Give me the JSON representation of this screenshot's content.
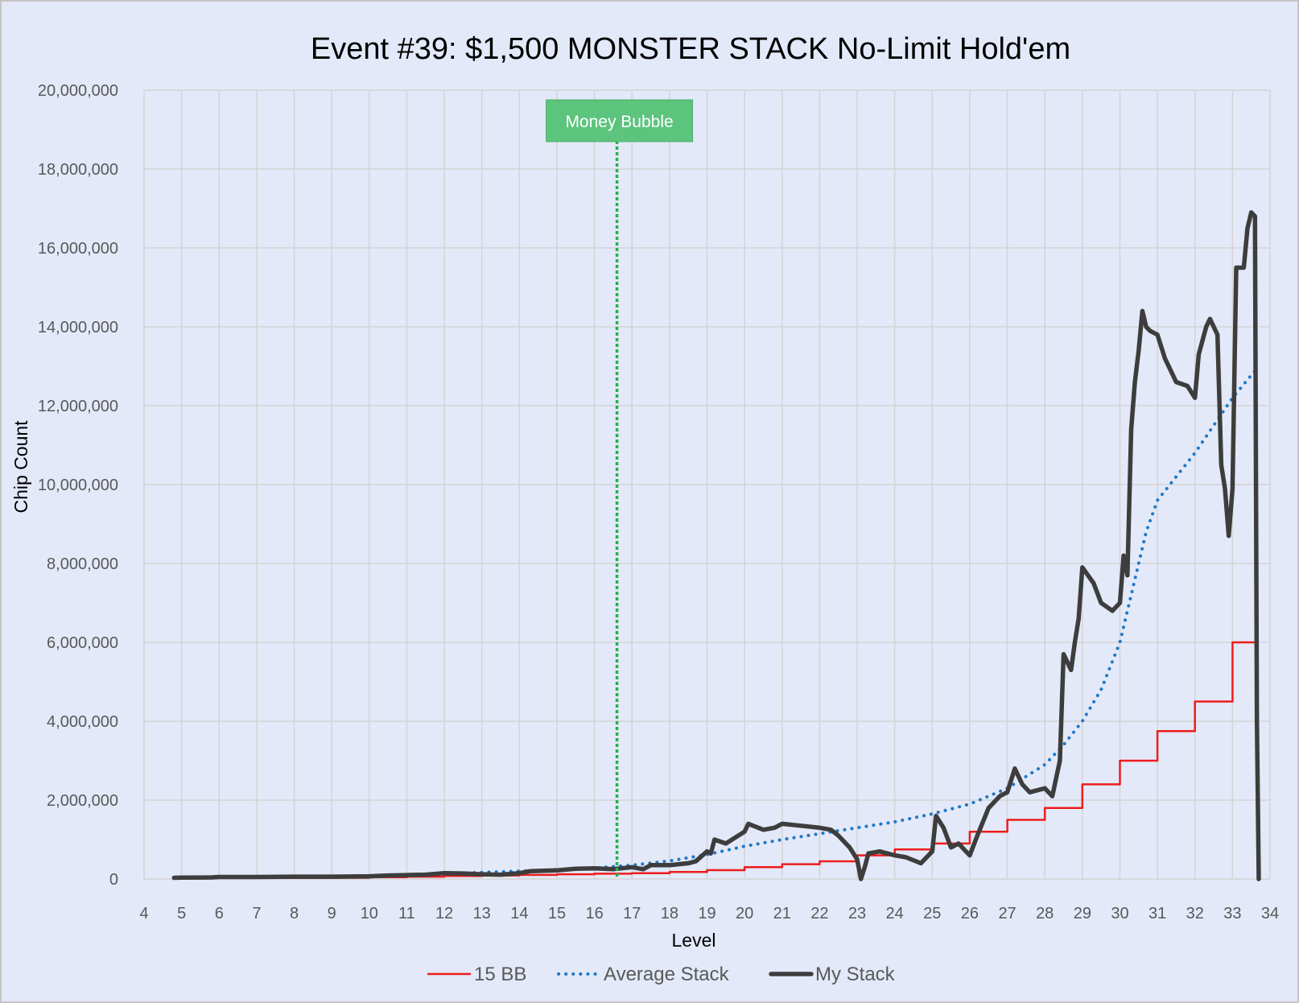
{
  "chart_data": {
    "type": "line",
    "title": "Event #39: $1,500 MONSTER STACK No-Limit Hold'em",
    "xlabel": "Level",
    "ylabel": "Chip Count",
    "xlim": [
      4,
      34
    ],
    "ylim": [
      0,
      20000000
    ],
    "x_ticks": [
      "4",
      "5",
      "6",
      "7",
      "8",
      "9",
      "10",
      "11",
      "12",
      "13",
      "14",
      "15",
      "16",
      "17",
      "18",
      "19",
      "20",
      "21",
      "22",
      "23",
      "24",
      "25",
      "26",
      "27",
      "28",
      "29",
      "30",
      "31",
      "32",
      "33",
      "34"
    ],
    "y_ticks": [
      "0",
      "2,000,000",
      "4,000,000",
      "6,000,000",
      "8,000,000",
      "10,000,000",
      "12,000,000",
      "14,000,000",
      "16,000,000",
      "18,000,000",
      "20,000,000"
    ],
    "grid": true,
    "legend_position": "bottom",
    "colors": {
      "background": "#e3e9f8",
      "grid": "#d4d4d4",
      "fifteen_bb": "#ee1c1c",
      "average_stack": "#1f78c8",
      "my_stack": "#3d3d3d",
      "money_bubble": "#22b14c",
      "money_bubble_box": "#5cc47d"
    },
    "annotation": {
      "label": "Money Bubble",
      "x": 16.6
    },
    "series": [
      {
        "name": "15 BB",
        "style": "step",
        "points": [
          [
            4.8,
            30000
          ],
          [
            10,
            30000
          ],
          [
            10,
            45000
          ],
          [
            11,
            45000
          ],
          [
            11,
            60000
          ],
          [
            12,
            60000
          ],
          [
            12,
            75000
          ],
          [
            13,
            75000
          ],
          [
            13,
            90000
          ],
          [
            14,
            90000
          ],
          [
            14,
            105000
          ],
          [
            15,
            105000
          ],
          [
            15,
            120000
          ],
          [
            16,
            120000
          ],
          [
            16,
            135000
          ],
          [
            17,
            135000
          ],
          [
            17,
            150000
          ],
          [
            18,
            150000
          ],
          [
            18,
            180000
          ],
          [
            19,
            180000
          ],
          [
            19,
            225000
          ],
          [
            20,
            225000
          ],
          [
            20,
            300000
          ],
          [
            21,
            300000
          ],
          [
            21,
            375000
          ],
          [
            22,
            375000
          ],
          [
            22,
            450000
          ],
          [
            23,
            450000
          ],
          [
            23,
            600000
          ],
          [
            24,
            600000
          ],
          [
            24,
            750000
          ],
          [
            25,
            750000
          ],
          [
            25,
            900000
          ],
          [
            26,
            900000
          ],
          [
            26,
            1200000
          ],
          [
            27,
            1200000
          ],
          [
            27,
            1500000
          ],
          [
            28,
            1500000
          ],
          [
            28,
            1800000
          ],
          [
            29,
            1800000
          ],
          [
            29,
            2400000
          ],
          [
            30,
            2400000
          ],
          [
            30,
            3000000
          ],
          [
            31,
            3000000
          ],
          [
            31,
            3750000
          ],
          [
            32,
            3750000
          ],
          [
            32,
            4500000
          ],
          [
            33,
            4500000
          ],
          [
            33,
            6000000
          ],
          [
            33.7,
            6000000
          ]
        ]
      },
      {
        "name": "Average Stack",
        "style": "dotted",
        "points": [
          [
            4.8,
            30000
          ],
          [
            6,
            35000
          ],
          [
            8,
            45000
          ],
          [
            10,
            70000
          ],
          [
            12,
            130000
          ],
          [
            13,
            170000
          ],
          [
            14,
            200000
          ],
          [
            15,
            240000
          ],
          [
            16,
            280000
          ],
          [
            17,
            350000
          ],
          [
            18,
            460000
          ],
          [
            19,
            620000
          ],
          [
            20,
            830000
          ],
          [
            21,
            1000000
          ],
          [
            22,
            1150000
          ],
          [
            23,
            1300000
          ],
          [
            24,
            1450000
          ],
          [
            25,
            1650000
          ],
          [
            26,
            1900000
          ],
          [
            27,
            2300000
          ],
          [
            28,
            2900000
          ],
          [
            28.5,
            3400000
          ],
          [
            29,
            4000000
          ],
          [
            29.5,
            4800000
          ],
          [
            30,
            6000000
          ],
          [
            30.3,
            7200000
          ],
          [
            30.7,
            8800000
          ],
          [
            31,
            9600000
          ],
          [
            31.5,
            10200000
          ],
          [
            32,
            10800000
          ],
          [
            32.5,
            11500000
          ],
          [
            33,
            12200000
          ],
          [
            33.7,
            13000000
          ]
        ]
      },
      {
        "name": "My Stack",
        "style": "solid",
        "points": [
          [
            4.8,
            30000
          ],
          [
            5,
            35000
          ],
          [
            5.8,
            40000
          ],
          [
            6,
            50000
          ],
          [
            7,
            50000
          ],
          [
            8,
            60000
          ],
          [
            9,
            60000
          ],
          [
            10,
            70000
          ],
          [
            10.5,
            90000
          ],
          [
            11,
            100000
          ],
          [
            11.5,
            110000
          ],
          [
            12,
            150000
          ],
          [
            12.5,
            140000
          ],
          [
            13,
            120000
          ],
          [
            13.5,
            110000
          ],
          [
            14,
            150000
          ],
          [
            14.3,
            200000
          ],
          [
            15,
            220000
          ],
          [
            15.5,
            260000
          ],
          [
            16,
            270000
          ],
          [
            16.5,
            250000
          ],
          [
            17,
            300000
          ],
          [
            17.3,
            250000
          ],
          [
            17.5,
            350000
          ],
          [
            18,
            350000
          ],
          [
            18.5,
            400000
          ],
          [
            18.7,
            450000
          ],
          [
            19,
            700000
          ],
          [
            19.1,
            650000
          ],
          [
            19.2,
            1000000
          ],
          [
            19.5,
            900000
          ],
          [
            20,
            1200000
          ],
          [
            20.1,
            1400000
          ],
          [
            20.5,
            1250000
          ],
          [
            20.8,
            1300000
          ],
          [
            21,
            1400000
          ],
          [
            21.5,
            1350000
          ],
          [
            22,
            1300000
          ],
          [
            22.3,
            1250000
          ],
          [
            22.5,
            1100000
          ],
          [
            22.8,
            800000
          ],
          [
            23,
            500000
          ],
          [
            23.1,
            0
          ],
          [
            23.2,
            300000
          ],
          [
            23.3,
            650000
          ],
          [
            23.6,
            700000
          ],
          [
            24,
            600000
          ],
          [
            24.3,
            550000
          ],
          [
            24.7,
            400000
          ],
          [
            25,
            700000
          ],
          [
            25.1,
            1600000
          ],
          [
            25.3,
            1300000
          ],
          [
            25.5,
            800000
          ],
          [
            25.7,
            900000
          ],
          [
            26,
            600000
          ],
          [
            26.2,
            1100000
          ],
          [
            26.5,
            1800000
          ],
          [
            26.8,
            2100000
          ],
          [
            27,
            2200000
          ],
          [
            27.2,
            2800000
          ],
          [
            27.4,
            2400000
          ],
          [
            27.6,
            2200000
          ],
          [
            28,
            2300000
          ],
          [
            28.2,
            2100000
          ],
          [
            28.4,
            3000000
          ],
          [
            28.5,
            5700000
          ],
          [
            28.7,
            5300000
          ],
          [
            28.8,
            6000000
          ],
          [
            28.9,
            6600000
          ],
          [
            29,
            7900000
          ],
          [
            29.3,
            7500000
          ],
          [
            29.5,
            7000000
          ],
          [
            29.8,
            6800000
          ],
          [
            30,
            7000000
          ],
          [
            30.1,
            8200000
          ],
          [
            30.2,
            7700000
          ],
          [
            30.3,
            11400000
          ],
          [
            30.4,
            12600000
          ],
          [
            30.5,
            13400000
          ],
          [
            30.6,
            14400000
          ],
          [
            30.7,
            14000000
          ],
          [
            30.8,
            13900000
          ],
          [
            31,
            13800000
          ],
          [
            31.2,
            13200000
          ],
          [
            31.5,
            12600000
          ],
          [
            31.8,
            12500000
          ],
          [
            32,
            12200000
          ],
          [
            32.1,
            13300000
          ],
          [
            32.3,
            14000000
          ],
          [
            32.4,
            14200000
          ],
          [
            32.6,
            13800000
          ],
          [
            32.7,
            10500000
          ],
          [
            32.8,
            9900000
          ],
          [
            32.9,
            8700000
          ],
          [
            33,
            9900000
          ],
          [
            33.1,
            15500000
          ],
          [
            33.3,
            15500000
          ],
          [
            33.4,
            16500000
          ],
          [
            33.5,
            16900000
          ],
          [
            33.6,
            16800000
          ],
          [
            33.65,
            4000000
          ],
          [
            33.7,
            0
          ]
        ]
      }
    ]
  }
}
